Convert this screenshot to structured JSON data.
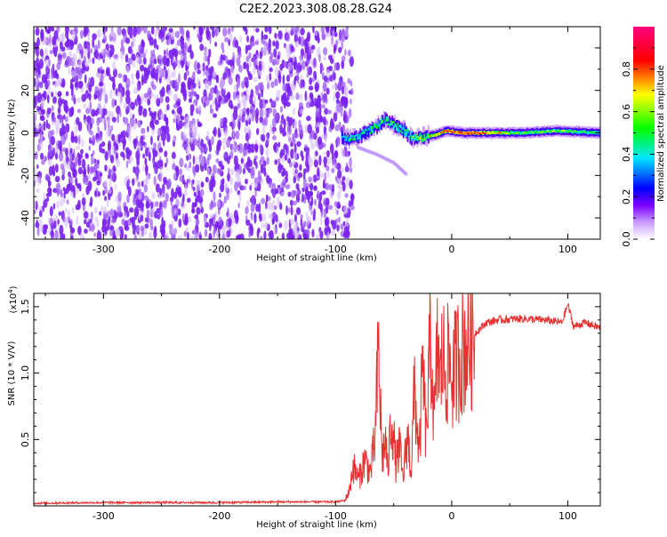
{
  "title": "C2E2.2023.308.08.28.G24",
  "chart_data": [
    {
      "type": "heatmap",
      "xlabel": "Height of straight line (km)",
      "ylabel": "Frequency (Hz)",
      "xlim": [
        -360,
        128
      ],
      "ylim": [
        -50,
        50
      ],
      "xticks": [
        -300,
        -200,
        -100,
        0,
        100
      ],
      "yticks": [
        -40,
        -20,
        0,
        20,
        40
      ],
      "colorbar": {
        "label": "Normalized spectral amplitude",
        "range": [
          0.0,
          1.0
        ],
        "ticks": [
          "0.0",
          "0.2",
          "0.4",
          "0.6",
          "0.8"
        ],
        "colormap": [
          "#ffffff",
          "#7b00ff",
          "#0000ff",
          "#00e5ff",
          "#00ff00",
          "#ffff00",
          "#ff0000",
          "#ff0080"
        ]
      },
      "noise_region_x": [
        -360,
        -90
      ],
      "signal_track": [
        {
          "x": -95,
          "f": -2,
          "amp": 0.35
        },
        {
          "x": -85,
          "f": -3,
          "amp": 0.45
        },
        {
          "x": -75,
          "f": 0,
          "amp": 0.4
        },
        {
          "x": -65,
          "f": 3,
          "amp": 0.5
        },
        {
          "x": -58,
          "f": 6,
          "amp": 0.45
        },
        {
          "x": -50,
          "f": 4,
          "amp": 0.5
        },
        {
          "x": -42,
          "f": 1,
          "amp": 0.45
        },
        {
          "x": -35,
          "f": -2,
          "amp": 0.5
        },
        {
          "x": -25,
          "f": -2,
          "amp": 0.55
        },
        {
          "x": -15,
          "f": -1,
          "amp": 0.7
        },
        {
          "x": -5,
          "f": 1,
          "amp": 0.8
        },
        {
          "x": 10,
          "f": 0,
          "amp": 0.85
        },
        {
          "x": 30,
          "f": 0,
          "amp": 0.75
        },
        {
          "x": 60,
          "f": 0,
          "amp": 0.5
        },
        {
          "x": 90,
          "f": 1,
          "amp": 0.55
        },
        {
          "x": 128,
          "f": 0,
          "amp": 0.45
        }
      ],
      "secondary_track": [
        {
          "x": -80,
          "f": -7
        },
        {
          "x": -65,
          "f": -10
        },
        {
          "x": -50,
          "f": -14
        },
        {
          "x": -38,
          "f": -20
        }
      ]
    },
    {
      "type": "line",
      "xlabel": "Height of straight line (km)",
      "ylabel": "SNR (10 * V/V)",
      "y_multiplier": "(x10",
      "y_multiplier_exp": "4",
      "y_multiplier_close": ")",
      "xlim": [
        -360,
        128
      ],
      "ylim": [
        0,
        1.6
      ],
      "xticks": [
        -300,
        -200,
        -100,
        0,
        100
      ],
      "yticks": [
        "0.5",
        "1.0",
        "1.5"
      ],
      "color": "#e83030",
      "series": [
        {
          "x": [
            -360,
            -300,
            -250,
            -200,
            -150,
            -110,
            -100,
            -92,
            -88,
            -85,
            -80,
            -75,
            -70,
            -66,
            -63,
            -60,
            -57,
            -55,
            -52,
            -48,
            -45,
            -42,
            -38,
            -35,
            -32,
            -28,
            -25,
            -22,
            -18,
            -15,
            -12,
            -10,
            -8,
            -5,
            -2,
            0,
            5,
            10,
            20,
            30,
            40,
            60,
            80,
            95,
            100,
            105,
            115,
            128
          ],
          "y": [
            0.02,
            0.025,
            0.025,
            0.025,
            0.03,
            0.03,
            0.03,
            0.04,
            0.12,
            0.3,
            0.2,
            0.35,
            0.25,
            0.5,
            1.2,
            0.35,
            0.5,
            0.25,
            0.7,
            0.3,
            0.45,
            0.2,
            0.55,
            0.25,
            0.9,
            0.35,
            1.05,
            0.5,
            1.3,
            0.6,
            1.25,
            0.9,
            1.15,
            1.0,
            1.1,
            0.95,
            1.1,
            1.2,
            1.3,
            1.38,
            1.4,
            1.41,
            1.4,
            1.38,
            1.52,
            1.35,
            1.38,
            1.34
          ]
        }
      ]
    }
  ]
}
